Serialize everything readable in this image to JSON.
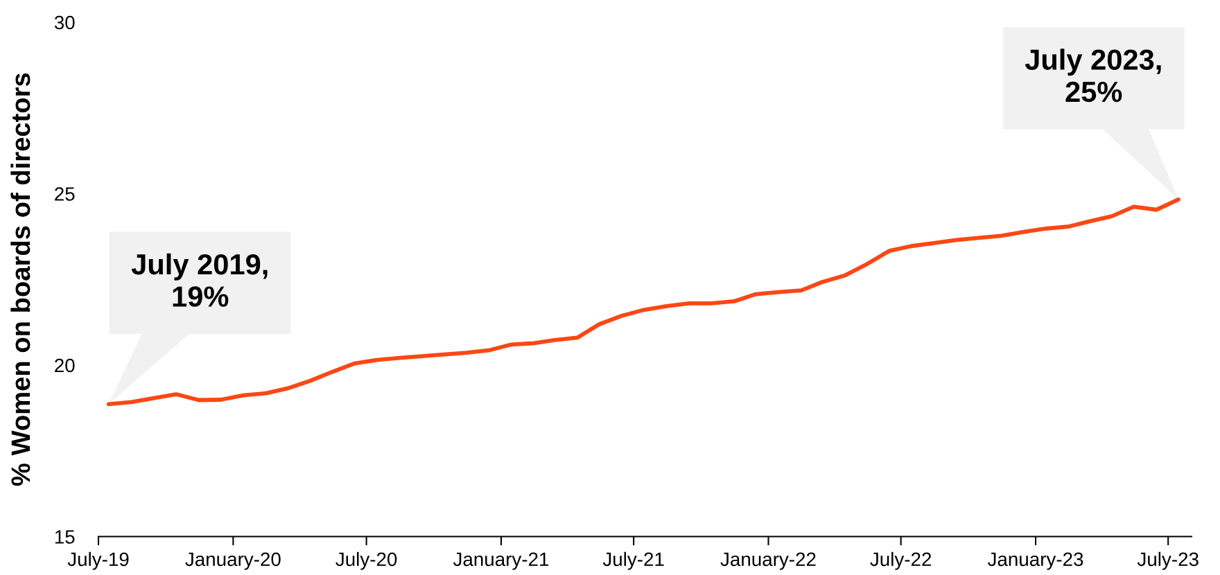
{
  "chart_data": {
    "type": "line",
    "ylabel": "% Women on boards of directors",
    "x": [
      "2019-07-15",
      "2019-08-15",
      "2019-09-15",
      "2019-10-15",
      "2019-11-15",
      "2019-12-15",
      "2020-01-15",
      "2020-02-15",
      "2020-03-15",
      "2020-04-15",
      "2020-05-15",
      "2020-06-15",
      "2020-07-15",
      "2020-08-15",
      "2020-09-15",
      "2020-10-15",
      "2020-11-15",
      "2020-12-15",
      "2021-01-15",
      "2021-02-15",
      "2021-03-15",
      "2021-04-15",
      "2021-05-15",
      "2021-06-15",
      "2021-07-15",
      "2021-08-15",
      "2021-09-15",
      "2021-10-15",
      "2021-11-15",
      "2021-12-15",
      "2022-01-15",
      "2022-02-15",
      "2022-03-15",
      "2022-04-15",
      "2022-05-15",
      "2022-06-15",
      "2022-07-15",
      "2022-08-15",
      "2022-09-15",
      "2022-10-15",
      "2022-11-15",
      "2022-12-15",
      "2023-01-15",
      "2023-02-15",
      "2023-03-15",
      "2023-04-15",
      "2023-05-15",
      "2023-06-15",
      "2023-07-15"
    ],
    "series": [
      {
        "color": "#fc4714",
        "values": [
          18.86,
          18.92,
          19.04,
          19.15,
          18.98,
          18.99,
          19.12,
          19.18,
          19.32,
          19.54,
          19.8,
          20.05,
          20.15,
          20.21,
          20.26,
          20.31,
          20.36,
          20.43,
          20.6,
          20.64,
          20.73,
          20.8,
          21.19,
          21.44,
          21.61,
          21.72,
          21.8,
          21.8,
          21.86,
          22.07,
          22.13,
          22.18,
          22.42,
          22.61,
          22.94,
          23.33,
          23.47,
          23.56,
          23.65,
          23.71,
          23.77,
          23.88,
          23.98,
          24.04,
          24.19,
          24.34,
          24.62,
          24.53,
          24.83
        ]
      }
    ],
    "xlim": [
      "2019-07-01",
      "2023-08-02"
    ],
    "xticks": [
      {
        "value": "2019-07-01",
        "label": "July-19"
      },
      {
        "value": "2020-01-01",
        "label": "January-20"
      },
      {
        "value": "2020-07-01",
        "label": "July-20"
      },
      {
        "value": "2021-01-01",
        "label": "January-21"
      },
      {
        "value": "2021-07-01",
        "label": "July-21"
      },
      {
        "value": "2022-01-01",
        "label": "January-22"
      },
      {
        "value": "2022-07-01",
        "label": "July-22"
      },
      {
        "value": "2023-01-01",
        "label": "January-23"
      },
      {
        "value": "2023-07-01",
        "label": "July-23"
      }
    ],
    "ylim": [
      15,
      30
    ],
    "yticks": [
      15,
      20,
      25,
      30
    ],
    "annotations": [
      "July 2019,\n19%",
      "July 2023,\n25%"
    ]
  }
}
